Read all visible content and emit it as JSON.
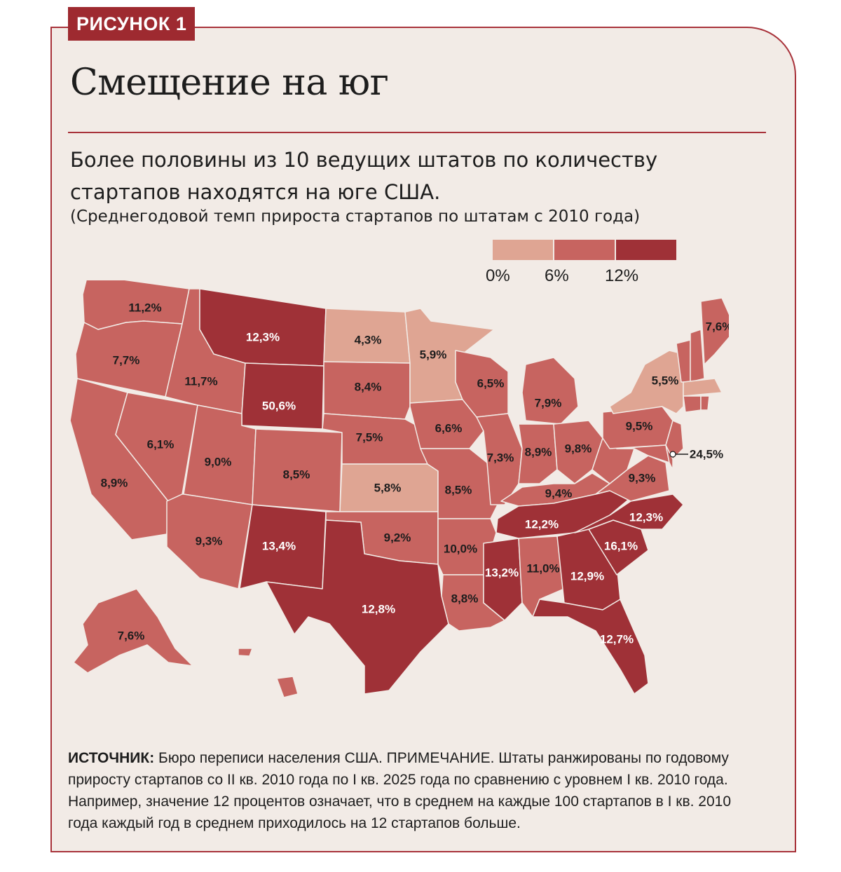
{
  "tag": "РИСУНОК 1",
  "title": "Смещение на юг",
  "subtitle": "Более половины из 10 ведущих штатов по количеству стартапов находятся на юге США.",
  "subnote": "(Среднегодовой темп прироста стартапов по штатам с 2010 года)",
  "legend": {
    "labels": [
      "0%",
      "6%",
      "12%"
    ],
    "colors": [
      "#dfa593",
      "#c76460",
      "#9f3137"
    ]
  },
  "map_labels": {
    "wa": "11,2%",
    "or": "7,7%",
    "ca": "8,9%",
    "nv": "6,1%",
    "id": "11,7%",
    "mt": "12,3%",
    "wy": "50,6%",
    "ut": "9,0%",
    "az": "9,3%",
    "co": "8,5%",
    "nm": "13,4%",
    "nd": "4,3%",
    "sd": "8,4%",
    "ne": "7,5%",
    "ks": "5,8%",
    "ok": "9,2%",
    "tx": "12,8%",
    "mn": "5,9%",
    "ia": "6,6%",
    "mo": "8,5%",
    "ar": "10,0%",
    "la": "8,8%",
    "wi": "6,5%",
    "il": "7,3%",
    "mi": "7,9%",
    "in": "8,9%",
    "oh": "9,8%",
    "ky": "9,4%",
    "tn": "12,2%",
    "ms": "13,2%",
    "al": "11,0%",
    "ga": "12,9%",
    "fl": "12,7%",
    "sc": "16,1%",
    "nc": "12,3%",
    "va": "9,3%",
    "pa": "9,5%",
    "ny": "5,5%",
    "me": "7,6%",
    "de": "24,5%",
    "ak": "7,6%"
  },
  "note": {
    "source_label": "ИСТОЧНИК:",
    "text": "Бюро переписи населения США. ПРИМЕЧАНИЕ. Штаты ранжированы по годовому приросту стартапов со II кв. 2010 года по I кв. 2025 года по сравнению с уровнем I кв. 2010 года. Например, значение 12 процентов означает, что в среднем на каждые 100 стартапов в I кв. 2010 года каждый год в среднем приходилось на 12 стартапов больше."
  },
  "colors": {
    "frame_border": "#a8323a",
    "background": "#f2ebe6",
    "tag_bg": "#9e2a30",
    "light": "#dfa593",
    "mid": "#c76460",
    "dark": "#9f3137"
  }
}
